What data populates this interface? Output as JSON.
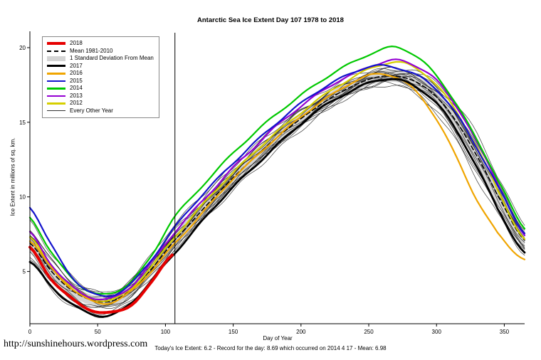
{
  "page": {
    "url_text": "http://sunshinehours.wordpress.com",
    "footer": "Today's Ice Extent: 6.2  -  Record for the day: 8.69 which occurred on 2014 4 17  -  Mean: 6.98"
  },
  "chart_data": {
    "type": "line",
    "title": "Antarctic Sea Ice Extent Day 107 1978 to 2018",
    "xlabel": "Day of Year",
    "ylabel": "Ice Extent in millions of sq. km.",
    "xlim": [
      0,
      365
    ],
    "ylim": [
      1.5,
      21
    ],
    "xticks": [
      0,
      50,
      100,
      150,
      200,
      250,
      300,
      350
    ],
    "yticks": [
      5,
      10,
      15,
      20
    ],
    "grid": false,
    "legend_position": "top-left",
    "marker_day": 107,
    "days": [
      0,
      15,
      30,
      45,
      60,
      75,
      90,
      105,
      120,
      135,
      150,
      165,
      180,
      195,
      210,
      225,
      240,
      255,
      270,
      285,
      300,
      315,
      330,
      345,
      365
    ],
    "mean": {
      "name": "Mean 1981-2010",
      "color": "#000000",
      "width": 1.6,
      "dashed": true,
      "values": [
        6.9,
        5.1,
        3.8,
        3.1,
        3.0,
        3.8,
        5.2,
        6.9,
        8.4,
        9.9,
        11.3,
        12.6,
        13.8,
        14.9,
        15.9,
        16.8,
        17.5,
        18.0,
        18.1,
        17.7,
        16.7,
        15.0,
        12.7,
        10.1,
        7.1
      ]
    },
    "std_dev": {
      "name": "1 Standard Deviation From Mean",
      "color": "#d4d4d4",
      "values": [
        0.6,
        0.5,
        0.4,
        0.35,
        0.35,
        0.4,
        0.45,
        0.5,
        0.5,
        0.5,
        0.5,
        0.45,
        0.45,
        0.4,
        0.4,
        0.4,
        0.4,
        0.4,
        0.4,
        0.4,
        0.45,
        0.5,
        0.55,
        0.6,
        0.6
      ]
    },
    "series": [
      {
        "name": "2012",
        "color": "#d6cf00",
        "width": 2.2,
        "values": [
          7.3,
          5.4,
          4.0,
          3.2,
          3.1,
          3.9,
          5.4,
          7.1,
          8.7,
          10.2,
          11.6,
          12.9,
          14.2,
          15.3,
          16.4,
          17.3,
          18.1,
          18.7,
          19.0,
          18.6,
          17.5,
          15.7,
          13.3,
          10.5,
          7.1
        ]
      },
      {
        "name": "2013",
        "color": "#9400d3",
        "width": 2.2,
        "values": [
          7.6,
          5.6,
          4.1,
          3.3,
          3.2,
          4.0,
          5.6,
          7.4,
          9.0,
          10.5,
          12.0,
          13.3,
          14.6,
          15.7,
          16.7,
          17.6,
          18.3,
          18.9,
          19.2,
          18.8,
          17.8,
          16.0,
          13.6,
          10.9,
          7.4
        ]
      },
      {
        "name": "2014",
        "color": "#00c800",
        "width": 2.2,
        "values": [
          8.6,
          6.4,
          4.6,
          3.6,
          3.5,
          4.4,
          6.1,
          8.5,
          10.0,
          11.5,
          12.9,
          14.2,
          15.4,
          16.5,
          17.5,
          18.4,
          19.1,
          19.7,
          20.0,
          19.4,
          18.1,
          16.2,
          13.8,
          11.2,
          7.9
        ]
      },
      {
        "name": "2015",
        "color": "#1414cc",
        "width": 2.2,
        "values": [
          9.3,
          6.9,
          4.8,
          3.6,
          3.4,
          4.2,
          5.8,
          7.7,
          9.4,
          10.9,
          12.3,
          13.6,
          14.8,
          15.9,
          16.9,
          17.7,
          18.4,
          18.8,
          18.7,
          18.2,
          17.2,
          15.5,
          13.2,
          10.7,
          7.6
        ]
      },
      {
        "name": "2016",
        "color": "#f0a500",
        "width": 2.2,
        "values": [
          7.1,
          5.3,
          3.9,
          3.0,
          2.9,
          3.7,
          5.1,
          6.7,
          8.2,
          9.7,
          11.2,
          12.5,
          13.8,
          15.0,
          16.1,
          17.0,
          17.8,
          18.2,
          18.0,
          17.0,
          15.2,
          12.6,
          9.8,
          7.6,
          5.8
        ]
      },
      {
        "name": "2017",
        "color": "#000000",
        "width": 2.8,
        "values": [
          5.6,
          4.1,
          2.9,
          2.2,
          2.1,
          2.9,
          4.4,
          6.0,
          7.6,
          9.2,
          10.7,
          12.0,
          13.3,
          14.5,
          15.6,
          16.5,
          17.2,
          17.8,
          17.9,
          17.4,
          16.3,
          14.4,
          11.9,
          9.2,
          6.2
        ]
      },
      {
        "name": "2018",
        "color": "#e60000",
        "width": 4,
        "values": [
          6.6,
          4.6,
          3.2,
          2.4,
          2.2,
          2.8,
          4.3,
          6.2,
          null,
          null,
          null,
          null,
          null,
          null,
          null,
          null,
          null,
          null,
          null,
          null,
          null,
          null,
          null,
          null,
          null
        ]
      }
    ],
    "background_years": {
      "name": "Every Other Year",
      "color": "#1a1a1a",
      "width": 0.7,
      "anchor_days": [
        0,
        60,
        105,
        180,
        270,
        330,
        365
      ],
      "offsets": [
        [
          0.4,
          -0.2,
          0.1,
          0.3,
          0.2,
          0.5,
          0.3
        ],
        [
          -0.6,
          -0.4,
          -0.5,
          -0.6,
          -0.4,
          -0.8,
          -0.5
        ],
        [
          1.0,
          0.3,
          0.6,
          0.4,
          0.3,
          0.9,
          0.6
        ],
        [
          -1.2,
          -0.6,
          -0.9,
          -0.8,
          -0.6,
          -1.2,
          -0.8
        ],
        [
          0.2,
          0.1,
          -0.2,
          -0.3,
          -0.2,
          0.2,
          0.1
        ],
        [
          0.7,
          0.5,
          0.8,
          0.6,
          0.4,
          1.1,
          0.8
        ],
        [
          -0.3,
          0.2,
          0.3,
          0.1,
          0.1,
          -0.3,
          -0.2
        ],
        [
          1.4,
          0.6,
          1.0,
          0.8,
          0.5,
          1.4,
          1.0
        ],
        [
          -0.9,
          -0.3,
          -0.6,
          -0.4,
          -0.5,
          -1.5,
          -1.0
        ],
        [
          0.5,
          -0.1,
          0.4,
          -0.1,
          0.0,
          0.6,
          0.4
        ],
        [
          -0.2,
          -0.5,
          -0.3,
          -0.5,
          -0.3,
          -0.6,
          -0.4
        ],
        [
          0.9,
          0.4,
          0.2,
          0.5,
          0.2,
          0.3,
          0.2
        ],
        [
          -1.4,
          -0.8,
          -0.7,
          -0.2,
          -0.1,
          -1.0,
          -0.6
        ],
        [
          0.1,
          0.3,
          0.5,
          0.2,
          0.4,
          0.7,
          0.5
        ]
      ]
    },
    "wiggle": {
      "background_amp": 0.13,
      "series_amp": 0.06,
      "freq1": 0.21,
      "freq2": 0.053
    },
    "legend": [
      {
        "label": "2018",
        "swatch": "thick",
        "color": "#e60000"
      },
      {
        "label": "Mean 1981-2010",
        "swatch": "dashed",
        "color": "#000000"
      },
      {
        "label": "1 Standard Deviation From Mean",
        "swatch": "band",
        "color": "#d4d4d4"
      },
      {
        "label": "2017",
        "swatch": "medium",
        "color": "#000000"
      },
      {
        "label": "2016",
        "swatch": "line",
        "color": "#f0a500"
      },
      {
        "label": "2015",
        "swatch": "line",
        "color": "#1414cc"
      },
      {
        "label": "2014",
        "swatch": "line",
        "color": "#00c800"
      },
      {
        "label": "2013",
        "swatch": "line",
        "color": "#9400d3"
      },
      {
        "label": "2012",
        "swatch": "line",
        "color": "#d6cf00"
      },
      {
        "label": "Every Other Year",
        "swatch": "thin",
        "color": "#333333"
      }
    ]
  }
}
